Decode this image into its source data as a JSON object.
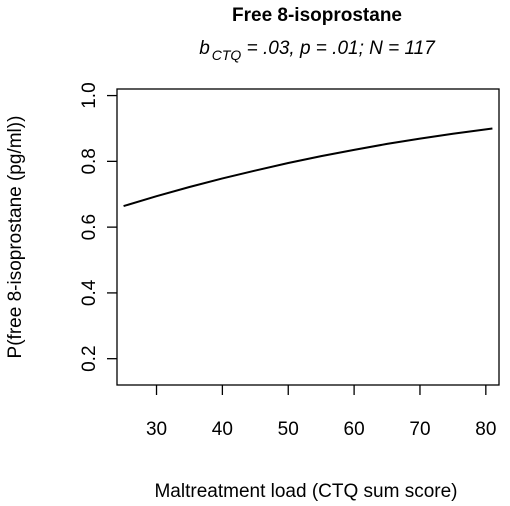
{
  "chart_data": {
    "type": "line",
    "title": "Free 8-isoprostane",
    "subtitle": {
      "b_label": "b",
      "b_subscript": "CTQ",
      "rest": " = .03, p = .01; N = 117"
    },
    "xlabel": "Maltreatment load (CTQ sum score)",
    "ylabel": "P(free 8-isoprostane (pg/ml))",
    "xlim": [
      24,
      82
    ],
    "ylim": [
      0.12,
      1.02
    ],
    "x_ticks": [
      30,
      40,
      50,
      60,
      70,
      80
    ],
    "y_ticks": [
      0.2,
      0.4,
      0.6,
      0.8,
      1.0
    ],
    "x_tick_labels": [
      "30",
      "40",
      "50",
      "60",
      "70",
      "80"
    ],
    "y_tick_labels": [
      "0.2",
      "0.4",
      "0.6",
      "0.8",
      "1.0"
    ],
    "grid": false,
    "series": [
      {
        "x": [
          25,
          30,
          35,
          40,
          45,
          50,
          55,
          60,
          65,
          70,
          75,
          81
        ],
        "y": [
          0.664,
          0.694,
          0.722,
          0.748,
          0.772,
          0.795,
          0.816,
          0.835,
          0.853,
          0.869,
          0.884,
          0.9
        ]
      }
    ]
  }
}
